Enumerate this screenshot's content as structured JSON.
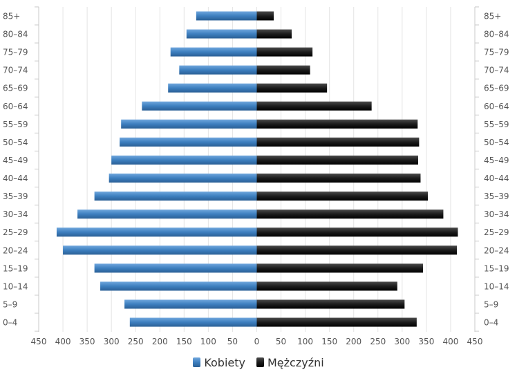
{
  "chart_data": {
    "type": "bar",
    "orientation": "horizontal",
    "layout": "population-pyramid",
    "categories": [
      "85+",
      "80–84",
      "75–79",
      "70–74",
      "65–69",
      "60–64",
      "55–59",
      "50–54",
      "45–49",
      "40–44",
      "35–39",
      "30–34",
      "25–29",
      "20–24",
      "15–19",
      "10–14",
      "5–9",
      "0–4"
    ],
    "series": [
      {
        "name": "Kobiety",
        "side": "left",
        "color": "#3d7fbf",
        "values": [
          125,
          145,
          178,
          160,
          183,
          237,
          280,
          283,
          300,
          305,
          335,
          370,
          413,
          400,
          335,
          323,
          273,
          262
        ]
      },
      {
        "name": "Mężczyźni",
        "side": "right",
        "color": "#1c1c1c",
        "values": [
          35,
          72,
          115,
          110,
          145,
          237,
          332,
          335,
          333,
          338,
          353,
          385,
          415,
          413,
          343,
          290,
          305,
          330
        ]
      }
    ],
    "x_ticks": [
      "450",
      "400",
      "350",
      "300",
      "250",
      "200",
      "150",
      "100",
      "50",
      "0",
      "50",
      "100",
      "150",
      "200",
      "250",
      "300",
      "350",
      "400",
      "450"
    ],
    "xlim": [
      -450,
      450
    ],
    "grid": true,
    "legend_position": "bottom"
  }
}
